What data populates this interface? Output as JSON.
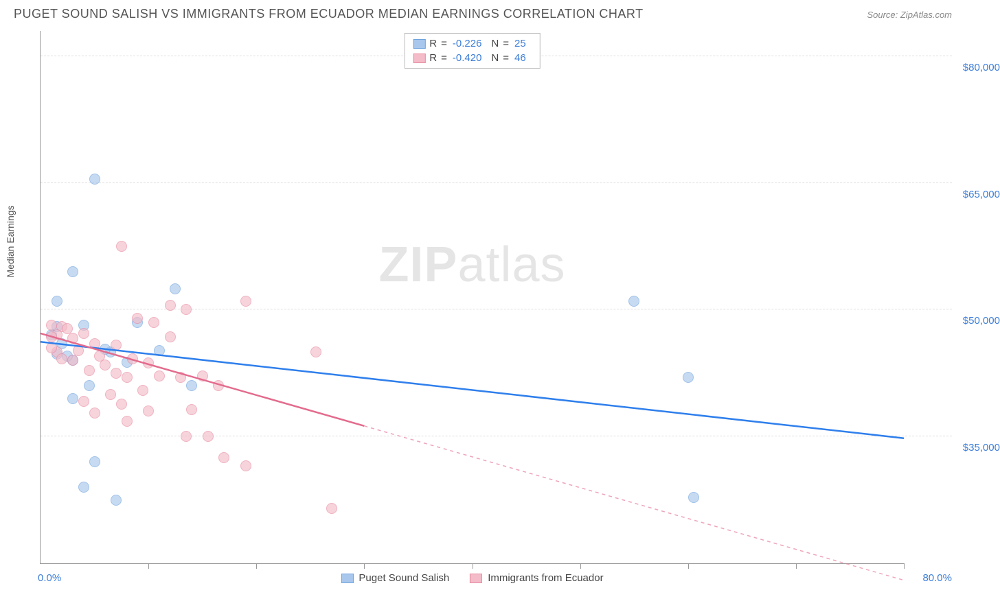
{
  "header": {
    "title": "PUGET SOUND SALISH VS IMMIGRANTS FROM ECUADOR MEDIAN EARNINGS CORRELATION CHART",
    "source": "Source: ZipAtlas.com"
  },
  "watermark": {
    "zip": "ZIP",
    "atlas": "atlas"
  },
  "chart": {
    "type": "scatter",
    "y_axis": {
      "label": "Median Earnings",
      "ylim": [
        20000,
        83000
      ],
      "ticks": [
        35000,
        50000,
        65000,
        80000
      ],
      "tick_labels": [
        "$35,000",
        "$50,000",
        "$65,000",
        "$80,000"
      ],
      "label_color": "#3b7dd8",
      "grid_color": "#dddddd",
      "axis_label_color": "#555555",
      "axis_label_fontsize": 14
    },
    "x_axis": {
      "xlim": [
        0,
        80
      ],
      "ticks": [
        10,
        20,
        30,
        40,
        50,
        60,
        70,
        80
      ],
      "end_labels": [
        "0.0%",
        "80.0%"
      ],
      "label_color": "#3b7dd8"
    },
    "series": [
      {
        "key": "puget",
        "name": "Puget Sound Salish",
        "fill": "#a9c7ec",
        "stroke": "#6fa3dd",
        "line_color": "#2f7fec",
        "marker_radius": 8,
        "marker_opacity": 0.65,
        "R": "-0.226",
        "N": "25",
        "trend": {
          "x1": 0,
          "y1": 46200,
          "x2": 80,
          "y2": 34800,
          "dashed_after_x": null
        },
        "points": [
          [
            5,
            65500
          ],
          [
            3,
            54500
          ],
          [
            1.5,
            51000
          ],
          [
            12.5,
            52500
          ],
          [
            1.5,
            48000
          ],
          [
            2,
            46000
          ],
          [
            9,
            48500
          ],
          [
            11,
            45200
          ],
          [
            6.5,
            45000
          ],
          [
            1.5,
            44800
          ],
          [
            3,
            44000
          ],
          [
            8,
            43800
          ],
          [
            4.5,
            41000
          ],
          [
            14,
            41000
          ],
          [
            3,
            39500
          ],
          [
            5,
            32000
          ],
          [
            7,
            27500
          ],
          [
            4,
            29000
          ],
          [
            6,
            45300
          ],
          [
            55,
            51000
          ],
          [
            60,
            42000
          ],
          [
            60.5,
            27800
          ],
          [
            4,
            48200
          ],
          [
            1,
            47000
          ],
          [
            2.5,
            44500
          ]
        ]
      },
      {
        "key": "ecuador",
        "name": "Immigrants from Ecuador",
        "fill": "#f3bcc8",
        "stroke": "#e88aa0",
        "line_color": "#e36b8d",
        "marker_radius": 8,
        "marker_opacity": 0.65,
        "R": "-0.420",
        "N": "46",
        "trend": {
          "x1": 0,
          "y1": 47200,
          "x2": 80,
          "y2": 18000,
          "dashed_after_x": 30
        },
        "points": [
          [
            7.5,
            57500
          ],
          [
            12,
            50500
          ],
          [
            13.5,
            50000
          ],
          [
            19,
            51000
          ],
          [
            9,
            49000
          ],
          [
            10.5,
            48500
          ],
          [
            1,
            48200
          ],
          [
            2,
            48000
          ],
          [
            1.5,
            47000
          ],
          [
            1,
            46800
          ],
          [
            3,
            46600
          ],
          [
            2.5,
            47800
          ],
          [
            4,
            47200
          ],
          [
            12,
            46800
          ],
          [
            5,
            46000
          ],
          [
            7,
            45800
          ],
          [
            3.5,
            45200
          ],
          [
            1.5,
            45000
          ],
          [
            5.5,
            44500
          ],
          [
            8.5,
            44200
          ],
          [
            10,
            43700
          ],
          [
            6,
            43500
          ],
          [
            4.5,
            42800
          ],
          [
            7,
            42500
          ],
          [
            8,
            42000
          ],
          [
            11,
            42200
          ],
          [
            13,
            42000
          ],
          [
            15,
            42200
          ],
          [
            16.5,
            41000
          ],
          [
            9.5,
            40500
          ],
          [
            6.5,
            40000
          ],
          [
            4,
            39200
          ],
          [
            7.5,
            38800
          ],
          [
            10,
            38000
          ],
          [
            5,
            37800
          ],
          [
            8,
            36800
          ],
          [
            14,
            38200
          ],
          [
            17,
            32500
          ],
          [
            19,
            31500
          ],
          [
            15.5,
            35000
          ],
          [
            25.5,
            45000
          ],
          [
            27,
            26500
          ],
          [
            13.5,
            35000
          ],
          [
            2,
            44200
          ],
          [
            1,
            45500
          ],
          [
            3,
            44000
          ]
        ]
      }
    ],
    "stats_legend": {
      "R_label": "R",
      "N_label": "N",
      "eq": "="
    },
    "background_color": "#ffffff"
  }
}
